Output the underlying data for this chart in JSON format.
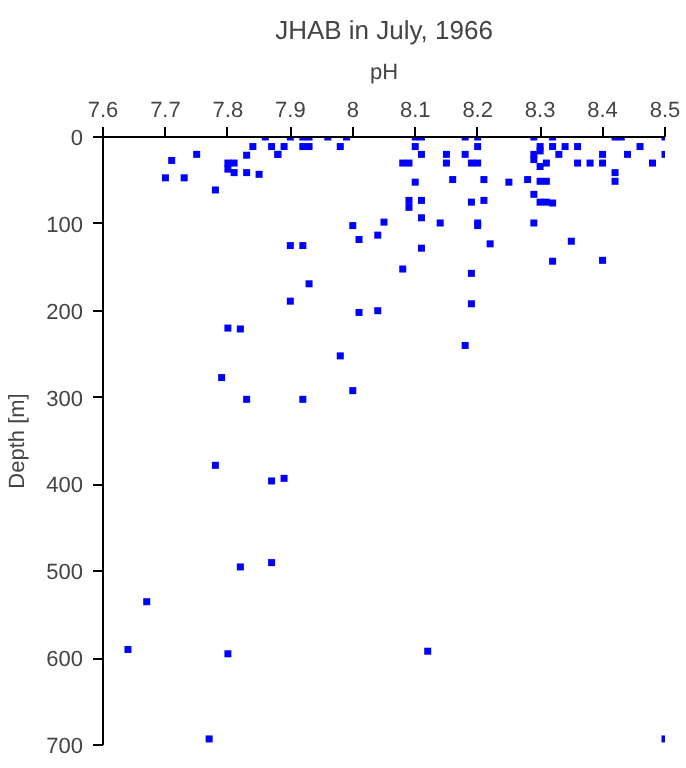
{
  "chart_data": {
    "type": "scatter",
    "title": "JHAB in July, 1966",
    "xlabel": "pH",
    "ylabel": "Depth [m]",
    "x": [
      7.7,
      7.71,
      7.73,
      7.75,
      7.78,
      7.8,
      7.8,
      7.81,
      7.81,
      7.83,
      7.83,
      7.84,
      7.85,
      7.86,
      7.87,
      7.88,
      7.88,
      7.89,
      7.9,
      7.9,
      7.92,
      7.92,
      7.93,
      7.93,
      7.93,
      7.9,
      7.92,
      7.96,
      7.98,
      7.99,
      8.0,
      8.01,
      8.04,
      8.05,
      8.08,
      8.1,
      8.1,
      8.11,
      8.11,
      8.08,
      8.09,
      8.1,
      8.09,
      8.09,
      8.11,
      8.11,
      8.11,
      8.14,
      8.15,
      8.15,
      8.16,
      8.18,
      8.18,
      8.19,
      8.2,
      8.2,
      8.2,
      8.19,
      8.21,
      8.21,
      8.2,
      8.2,
      8.22,
      8.19,
      8.19,
      8.25,
      8.28,
      8.29,
      8.29,
      8.29,
      8.3,
      8.3,
      8.3,
      8.3,
      8.31,
      8.29,
      8.3,
      8.31,
      8.32,
      8.29,
      8.32,
      8.32,
      8.31,
      8.33,
      8.34,
      8.36,
      8.36,
      8.35,
      8.32,
      8.38,
      8.4,
      8.4,
      8.4,
      8.42,
      8.42,
      8.42,
      8.43,
      8.44,
      8.46,
      8.48,
      8.5,
      8.5,
      7.8,
      7.82,
      8.01,
      8.04,
      7.98,
      8.18,
      7.79,
      7.83,
      7.92,
      8.0,
      7.78,
      7.87,
      7.89,
      7.87,
      7.64,
      7.67,
      7.77,
      7.8,
      7.82,
      8.12,
      8.5
    ],
    "values": [
      47,
      27,
      47,
      20,
      61,
      30,
      37,
      30,
      41,
      21,
      41,
      11,
      43,
      0,
      11,
      20,
      20,
      11,
      0,
      125,
      0,
      11,
      11,
      0,
      169,
      189,
      125,
      0,
      11,
      0,
      102,
      118,
      113,
      98,
      152,
      0,
      11,
      0,
      20,
      30,
      30,
      52,
      73,
      81,
      73,
      93,
      128,
      99,
      20,
      30,
      49,
      0,
      20,
      30,
      0,
      11,
      30,
      75,
      49,
      73,
      99,
      102,
      123,
      157,
      192,
      52,
      49,
      0,
      20,
      26,
      11,
      16,
      34,
      51,
      51,
      66,
      75,
      75,
      76,
      99,
      0,
      11,
      30,
      20,
      11,
      11,
      30,
      120,
      143,
      30,
      20,
      30,
      142,
      41,
      51,
      0,
      0,
      20,
      11,
      30,
      0,
      20,
      220,
      221,
      202,
      200,
      252,
      240,
      277,
      302,
      302,
      292,
      378,
      396,
      393,
      490,
      590,
      535,
      693,
      595,
      495,
      592,
      693
    ],
    "color": "#0000ff",
    "marker": "square",
    "xlim": [
      7.6,
      8.5
    ],
    "xticks": [
      7.6,
      7.7,
      7.8,
      7.9,
      8,
      8.1,
      8.2,
      8.3,
      8.4,
      8.5
    ],
    "ylim": [
      700,
      0
    ],
    "yticks": [
      0,
      100,
      200,
      300,
      400,
      500,
      600,
      700
    ],
    "grid": false
  }
}
